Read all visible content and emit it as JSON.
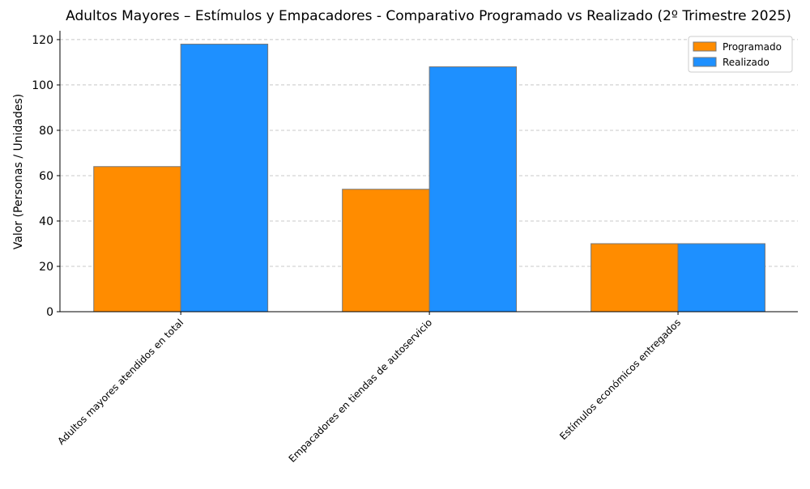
{
  "chart_data": {
    "type": "bar",
    "title": "Adultos Mayores – Estímulos y Empacadores - Comparativo Programado vs Realizado (2º Trimestre 2025)",
    "y_label": "Valor (Personas / Unidades)",
    "categories": [
      "Adultos mayores atendidos en total",
      "Empacadores en tiendas de autoservicio",
      "Estímulos económicos entregados"
    ],
    "series": [
      {
        "name": "Programado",
        "color": "#ff8c00",
        "values": [
          64,
          54,
          30
        ]
      },
      {
        "name": "Realizado",
        "color": "#1e90ff",
        "values": [
          118,
          108,
          30
        ]
      }
    ],
    "ylim": [
      0,
      123.9
    ],
    "yticks": [
      0,
      20,
      40,
      60,
      80,
      100,
      120
    ],
    "grid": true,
    "legend": "upper right"
  }
}
